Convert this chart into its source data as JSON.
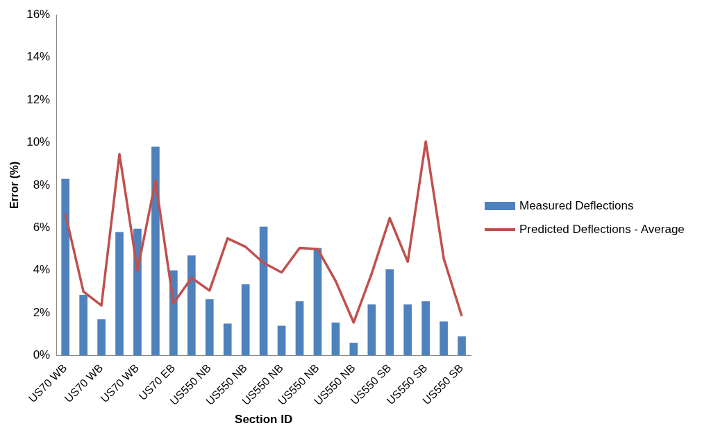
{
  "chart_data": {
    "type": "bar",
    "xlabel": "Section ID",
    "ylabel": "Error (%)",
    "categories": [
      "US70 WB",
      null,
      "US70 WB",
      null,
      "US70 WB",
      null,
      "US70 EB",
      null,
      "US550 NB",
      null,
      "US550 NB",
      null,
      "US550 NB",
      null,
      "US550 NB",
      null,
      "US550 NB",
      null,
      "US550 SB",
      null,
      "US550 SB",
      null,
      "US550 SB"
    ],
    "series": [
      {
        "name": "Measured Deflections",
        "color": "#4f81bd",
        "values": [
          8.3,
          2.85,
          1.7,
          5.8,
          5.95,
          9.8,
          4.0,
          4.7,
          2.65,
          1.5,
          3.35,
          6.05,
          1.4,
          2.55,
          5.05,
          1.55,
          0.6,
          2.4,
          4.05,
          2.4,
          2.55,
          1.6,
          0.9
        ]
      },
      {
        "name": "Predicted Deflections - Average",
        "type": "line",
        "color": "#c0504d",
        "values": [
          6.65,
          3.0,
          2.35,
          9.45,
          4.0,
          8.2,
          2.45,
          3.65,
          3.05,
          5.5,
          5.1,
          4.35,
          3.9,
          5.05,
          5.0,
          3.5,
          1.55,
          3.85,
          6.45,
          4.4,
          10.05,
          4.55,
          1.85
        ]
      }
    ],
    "ylim": [
      0,
      16
    ],
    "yticks": [
      {
        "value": 0,
        "label": "0%"
      },
      {
        "value": 2,
        "label": "2%"
      },
      {
        "value": 4,
        "label": "4%"
      },
      {
        "value": 6,
        "label": "6%"
      },
      {
        "value": 8,
        "label": "8%"
      },
      {
        "value": 10,
        "label": "10%"
      },
      {
        "value": 12,
        "label": "12%"
      },
      {
        "value": 14,
        "label": "14%"
      },
      {
        "value": 16,
        "label": "16%"
      }
    ],
    "grid": false,
    "legend": "right",
    "marker": "none",
    "line_style": "solid"
  }
}
